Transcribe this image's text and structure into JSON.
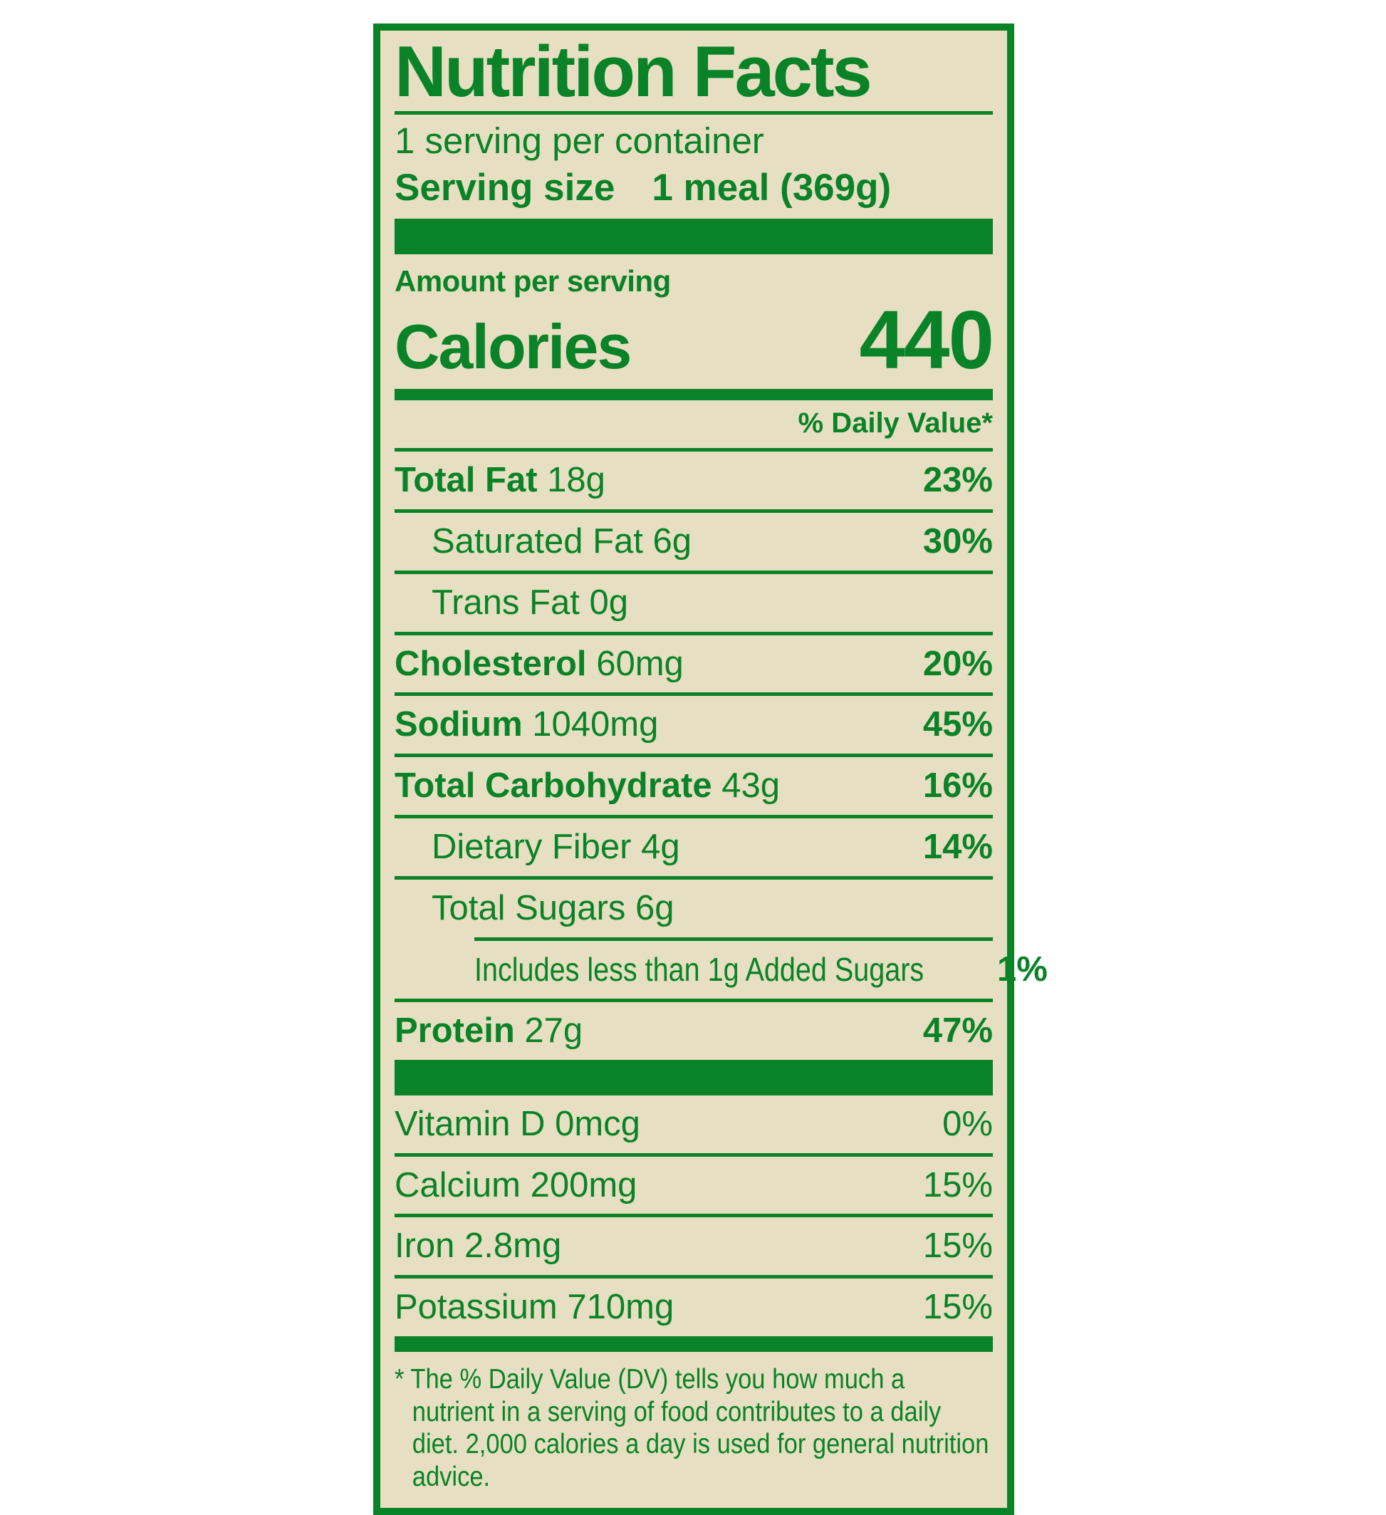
{
  "colors": {
    "green": "#0a8228",
    "tan": "#e7dfc1",
    "page_bg": "#ffffff"
  },
  "label": {
    "title": "Nutrition Facts",
    "servings_per_container": "1 serving per container",
    "serving_size_label": "Serving size",
    "serving_size_value": "1 meal (369g)",
    "amount_per_serving": "Amount per serving",
    "calories_label": "Calories",
    "calories_value": "440",
    "daily_value_header": "% Daily Value*",
    "nutrients": [
      {
        "name": "Total Fat",
        "amount": "18g",
        "dv": "23%",
        "bold": true,
        "indent": 0
      },
      {
        "name": "Saturated Fat",
        "amount": "6g",
        "dv": "30%",
        "bold": false,
        "indent": 1
      },
      {
        "name": "Trans Fat",
        "amount": "0g",
        "dv": "",
        "bold": false,
        "indent": 1
      },
      {
        "name": "Cholesterol",
        "amount": "60mg",
        "dv": "20%",
        "bold": true,
        "indent": 0
      },
      {
        "name": "Sodium",
        "amount": "1040mg",
        "dv": "45%",
        "bold": true,
        "indent": 0
      },
      {
        "name": "Total Carbohydrate",
        "amount": "43g",
        "dv": "16%",
        "bold": true,
        "indent": 0
      },
      {
        "name": "Dietary Fiber",
        "amount": "4g",
        "dv": "14%",
        "bold": false,
        "indent": 1
      },
      {
        "name": "Total Sugars",
        "amount": "6g",
        "dv": "",
        "bold": false,
        "indent": 1
      },
      {
        "name": "Includes less than 1g Added Sugars",
        "amount": "",
        "dv": "1%",
        "bold": false,
        "indent": 2,
        "condensed": true,
        "rule_indent": 112
      },
      {
        "name": "Protein",
        "amount": "27g",
        "dv": "47%",
        "bold": true,
        "indent": 0
      }
    ],
    "micronutrients": [
      {
        "name": "Vitamin D 0mcg",
        "dv": "0%"
      },
      {
        "name": "Calcium 200mg",
        "dv": "15%"
      },
      {
        "name": "Iron 2.8mg",
        "dv": "15%"
      },
      {
        "name": "Potassium 710mg",
        "dv": "15%"
      }
    ],
    "footnote": "* The % Daily Value (DV) tells you how much a nutrient in a serving of food contributes to a daily diet. 2,000 calories a day is used for general nutrition advice."
  }
}
